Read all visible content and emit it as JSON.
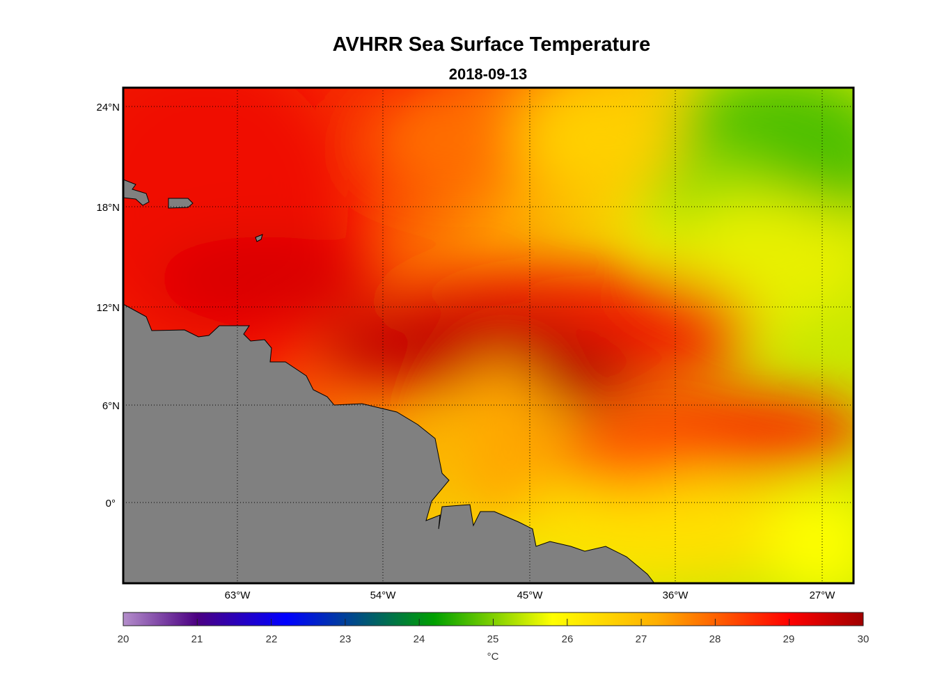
{
  "title": "AVHRR Sea Surface Temperature",
  "subtitle": "2018-09-13",
  "map": {
    "lat_labels": [
      "24°N",
      "18°N",
      "12°N",
      "6°N",
      "0°"
    ],
    "lon_labels": [
      "63°W",
      "54°W",
      "45°W",
      "36°W",
      "27°W"
    ],
    "land_color": "#808080"
  },
  "colorbar": {
    "ticks": [
      "20",
      "21",
      "22",
      "23",
      "24",
      "25",
      "26",
      "27",
      "28",
      "29",
      "30"
    ],
    "unit": "°C",
    "range": [
      20,
      30
    ],
    "colors": [
      "#b48ecb",
      "#4b0082",
      "#0000ff",
      "#00a000",
      "#ffff00",
      "#ff0000",
      "#a00000"
    ]
  }
}
